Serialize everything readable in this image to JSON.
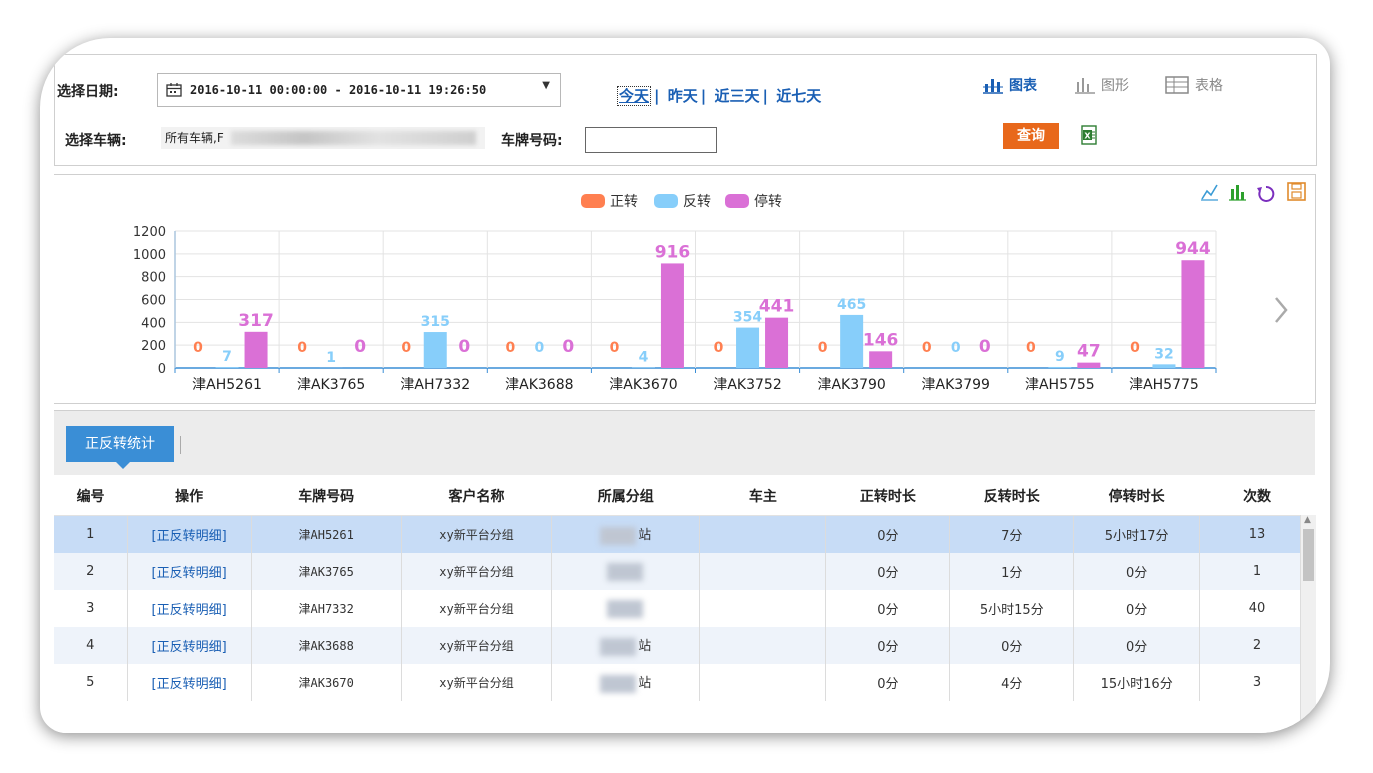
{
  "filter": {
    "date_label": "选择日期:",
    "date_range": "2016-10-11 00:00:00 - 2016-10-11 19:26:50",
    "quick_today": "今天",
    "quick_yesterday": "昨天",
    "quick_3days": "近三天",
    "quick_7days": "近七天",
    "vehicle_label": "选择车辆:",
    "vehicle_value": "所有车辆,F",
    "plate_label": "车牌号码:",
    "plate_value": "",
    "query_label": "查询",
    "view_chart": "图表",
    "view_graph": "图形",
    "view_table": "表格"
  },
  "colors": {
    "forward": "#ff7f50",
    "reverse": "#87cefa",
    "stop": "#da70d6",
    "accent": "#1a5fb4",
    "query": "#e8681b"
  },
  "chart_data": {
    "type": "bar",
    "categories": [
      "津AH5261",
      "津AK3765",
      "津AH7332",
      "津AK3688",
      "津AK3670",
      "津AK3752",
      "津AK3790",
      "津AK3799",
      "津AH5755",
      "津AH5775"
    ],
    "series": [
      {
        "name": "正转",
        "values": [
          0,
          0,
          0,
          0,
          0,
          0,
          0,
          0,
          0,
          0
        ]
      },
      {
        "name": "反转",
        "values": [
          7,
          1,
          315,
          0,
          4,
          354,
          465,
          0,
          9,
          32
        ]
      },
      {
        "name": "停转",
        "values": [
          317,
          0,
          0,
          0,
          916,
          441,
          146,
          0,
          47,
          944
        ]
      }
    ],
    "yticks": [
      "1200",
      "1000",
      "800",
      "600",
      "400",
      "200",
      "0"
    ],
    "ylim": [
      0,
      1200
    ],
    "legend_position": "top-center",
    "grid": true
  },
  "tab": {
    "label": "正反转统计"
  },
  "table": {
    "headers": [
      "编号",
      "操作",
      "车牌号码",
      "客户名称",
      "所属分组",
      "车主",
      "正转时长",
      "反转时长",
      "停转时长",
      "次数"
    ],
    "rows": [
      {
        "id": "1",
        "action": "[正反转明细]",
        "plate": "津AH5261",
        "customer": "xy新平台分组",
        "group": "站",
        "owner": "",
        "forward": "0分",
        "reverse": "7分",
        "stop": "5小时17分",
        "count": "13"
      },
      {
        "id": "2",
        "action": "[正反转明细]",
        "plate": "津AK3765",
        "customer": "xy新平台分组",
        "group": "",
        "owner": "",
        "forward": "0分",
        "reverse": "1分",
        "stop": "0分",
        "count": "1"
      },
      {
        "id": "3",
        "action": "[正反转明细]",
        "plate": "津AH7332",
        "customer": "xy新平台分组",
        "group": "",
        "owner": "",
        "forward": "0分",
        "reverse": "5小时15分",
        "stop": "0分",
        "count": "40"
      },
      {
        "id": "4",
        "action": "[正反转明细]",
        "plate": "津AK3688",
        "customer": "xy新平台分组",
        "group": "站",
        "owner": "",
        "forward": "0分",
        "reverse": "0分",
        "stop": "0分",
        "count": "2"
      },
      {
        "id": "5",
        "action": "[正反转明细]",
        "plate": "津AK3670",
        "customer": "xy新平台分组",
        "group": "站",
        "owner": "",
        "forward": "0分",
        "reverse": "4分",
        "stop": "15小时16分",
        "count": "3"
      }
    ]
  }
}
